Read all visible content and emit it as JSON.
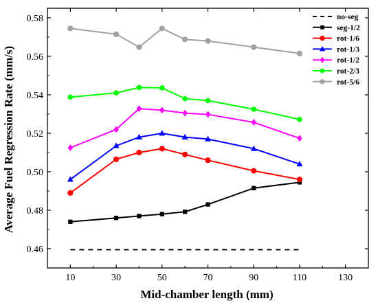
{
  "chart_data": {
    "type": "line",
    "xlabel": "Mid-chamber length (mm)",
    "ylabel": "Average Fuel Regression Rate (mm/s)",
    "xlim": [
      0,
      140
    ],
    "ylim": [
      0.45,
      0.585
    ],
    "x_ticks": [
      10,
      30,
      50,
      70,
      90,
      110,
      130
    ],
    "y_ticks": [
      0.46,
      0.48,
      0.5,
      0.52,
      0.54,
      0.56,
      0.58
    ],
    "y_tick_labels": [
      "0.46",
      "0.48",
      "0.50",
      "0.52",
      "0.54",
      "0.56",
      "0.58"
    ],
    "grid": false,
    "legend_position": "top-right",
    "series": [
      {
        "name": "no-seg",
        "color": "#000000",
        "style": "dashed",
        "marker": "none",
        "x": [
          10,
          110
        ],
        "y": [
          0.4595,
          0.4595
        ]
      },
      {
        "name": "seg-1/2",
        "color": "#000000",
        "style": "solid",
        "marker": "square",
        "x": [
          10,
          30,
          40,
          50,
          60,
          70,
          90,
          110
        ],
        "y": [
          0.474,
          0.476,
          0.477,
          0.478,
          0.4792,
          0.483,
          0.4915,
          0.4945
        ]
      },
      {
        "name": "rot-1/6",
        "color": "#ff0000",
        "style": "solid",
        "marker": "circle",
        "x": [
          10,
          30,
          40,
          50,
          60,
          70,
          90,
          110
        ],
        "y": [
          0.489,
          0.5065,
          0.51,
          0.512,
          0.509,
          0.506,
          0.5005,
          0.496
        ]
      },
      {
        "name": "rot-1/3",
        "color": "#0000ff",
        "style": "solid",
        "marker": "triangle",
        "x": [
          10,
          30,
          40,
          50,
          60,
          70,
          90,
          110
        ],
        "y": [
          0.496,
          0.5135,
          0.518,
          0.52,
          0.518,
          0.517,
          0.512,
          0.504
        ]
      },
      {
        "name": "rot-1/2",
        "color": "#ff00ff",
        "style": "solid",
        "marker": "diamond",
        "x": [
          10,
          30,
          40,
          50,
          60,
          70,
          90,
          110
        ],
        "y": [
          0.5125,
          0.522,
          0.5328,
          0.532,
          0.5305,
          0.5298,
          0.5257,
          0.5174
        ]
      },
      {
        "name": "rot-2/3",
        "color": "#00ff00",
        "style": "solid",
        "marker": "hexagon",
        "x": [
          10,
          30,
          40,
          50,
          60,
          70,
          90,
          110
        ],
        "y": [
          0.5388,
          0.541,
          0.5438,
          0.5436,
          0.538,
          0.537,
          0.5325,
          0.5272
        ]
      },
      {
        "name": "rot-5/6",
        "color": "#a0a0a0",
        "style": "solid",
        "marker": "circle",
        "x": [
          10,
          30,
          40,
          50,
          60,
          70,
          90,
          110
        ],
        "y": [
          0.5745,
          0.5715,
          0.5648,
          0.5745,
          0.5688,
          0.568,
          0.5648,
          0.5615
        ]
      }
    ]
  }
}
